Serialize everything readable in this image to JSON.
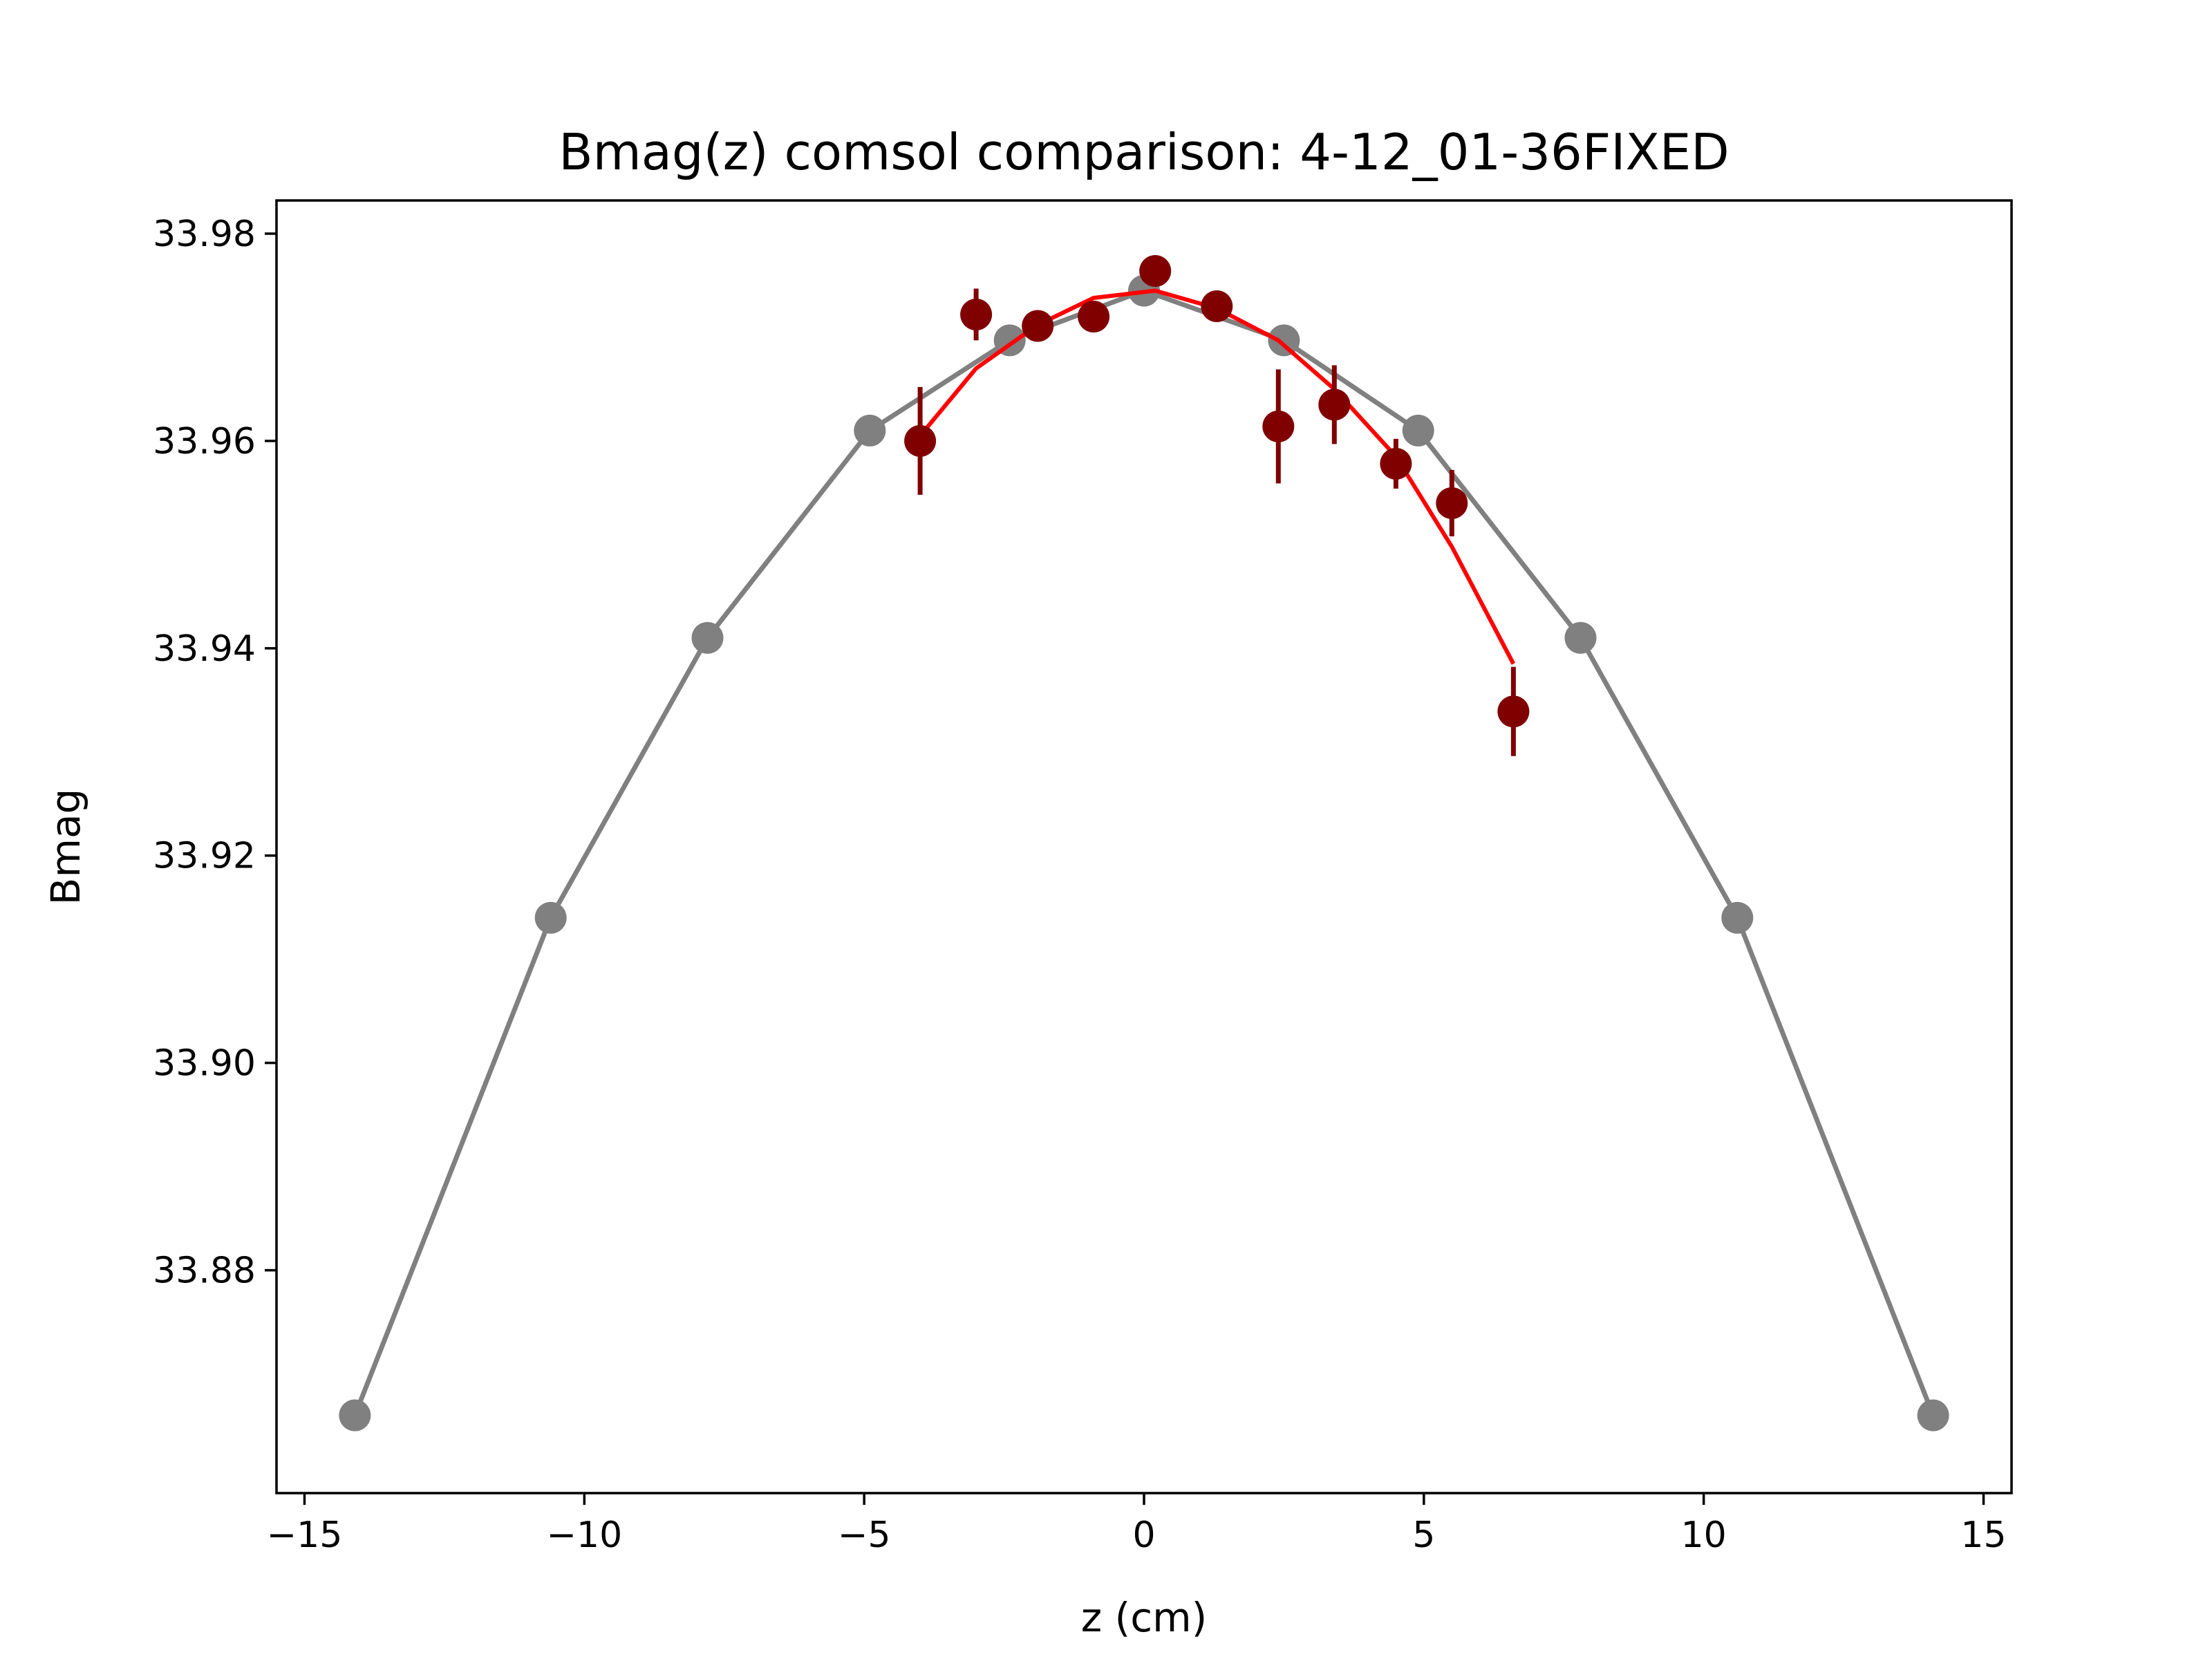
{
  "chart_data": {
    "type": "scatter",
    "title": "Bmag(z) comsol comparison: 4-12_01-36FIXED",
    "xlabel": "z (cm)",
    "ylabel": "Bmag",
    "xlim": [
      -15.5,
      15.5
    ],
    "ylim": [
      33.8585,
      33.9832
    ],
    "x_ticks": [
      -15,
      -10,
      -5,
      0,
      5,
      10,
      15
    ],
    "x_tick_labels": [
      "−15",
      "−10",
      "−5",
      "0",
      "5",
      "10",
      "15"
    ],
    "y_ticks": [
      33.88,
      33.9,
      33.92,
      33.94,
      33.96,
      33.98
    ],
    "y_tick_labels": [
      "33.88",
      "33.90",
      "33.92",
      "33.94",
      "33.96",
      "33.98"
    ],
    "grid": false,
    "series": [
      {
        "kind": "line-markers",
        "color": "#808080",
        "points": [
          [
            -14.1,
            33.866
          ],
          [
            -10.6,
            33.914
          ],
          [
            -7.8,
            33.941
          ],
          [
            -4.9,
            33.961
          ],
          [
            -2.4,
            33.9697
          ],
          [
            0.0,
            33.9745
          ],
          [
            2.5,
            33.9697
          ],
          [
            4.9,
            33.961
          ],
          [
            7.8,
            33.941
          ],
          [
            10.6,
            33.914
          ],
          [
            14.1,
            33.866
          ]
        ]
      },
      {
        "kind": "line",
        "color": "#ff0000",
        "points": [
          [
            -4.0,
            33.9605
          ],
          [
            -3.0,
            33.967
          ],
          [
            -1.9,
            33.9712
          ],
          [
            -0.9,
            33.9738
          ],
          [
            0.2,
            33.9745
          ],
          [
            1.3,
            33.9728
          ],
          [
            2.4,
            33.9697
          ],
          [
            3.4,
            33.965
          ],
          [
            4.5,
            33.9585
          ],
          [
            5.5,
            33.9498
          ],
          [
            6.6,
            33.9385
          ]
        ]
      },
      {
        "kind": "errorbar",
        "color": "#800000",
        "points": [
          [
            -4.0,
            33.96,
            0.0052
          ],
          [
            -3.0,
            33.9722,
            0.0025
          ],
          [
            -1.9,
            33.9711,
            0.0009
          ],
          [
            -0.9,
            33.972,
            0.0008
          ],
          [
            0.2,
            33.9764,
            0.0008
          ],
          [
            1.3,
            33.973,
            0.0008
          ],
          [
            2.4,
            33.9614,
            0.0055
          ],
          [
            3.4,
            33.9635,
            0.0038
          ],
          [
            4.5,
            33.9578,
            0.0024
          ],
          [
            5.5,
            33.954,
            0.0032
          ],
          [
            6.6,
            33.9339,
            0.0043
          ]
        ]
      }
    ]
  }
}
